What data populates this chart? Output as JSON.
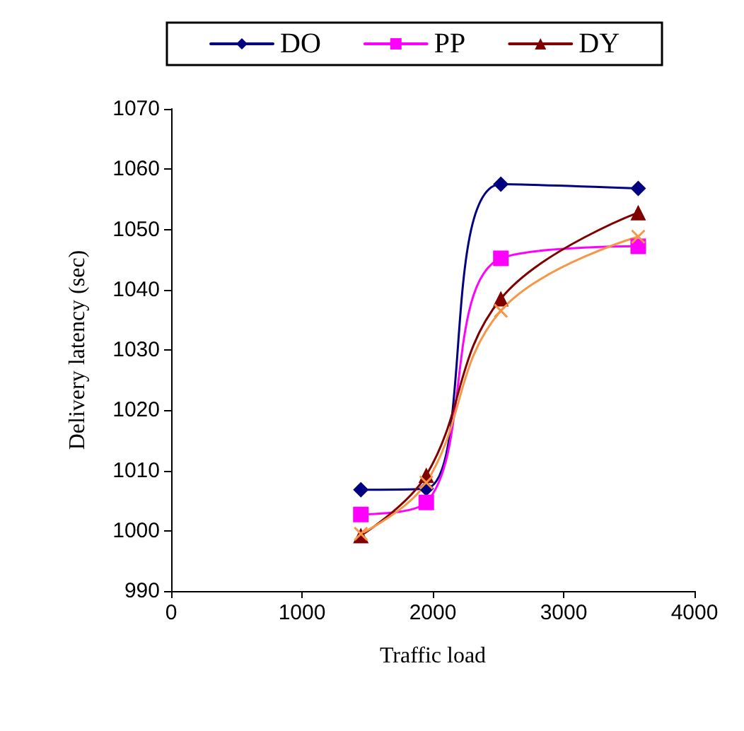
{
  "chart_data": {
    "type": "line",
    "xlabel": "Traffic load",
    "ylabel": "Delivery latency (sec)",
    "x": [
      1450,
      1950,
      2520,
      3570
    ],
    "series": [
      {
        "name": "DO",
        "color": "#000080",
        "marker": "diamond",
        "values": [
          1006.8,
          1007,
          1057.5,
          1056.8
        ]
      },
      {
        "name": "PP",
        "color": "#ff00ff",
        "marker": "square",
        "values": [
          1002.7,
          1004.7,
          1045.2,
          1047.2
        ]
      },
      {
        "name": "DY",
        "color": "#800000",
        "marker": "triangle",
        "values": [
          999.2,
          1009.2,
          1038.5,
          1052.8
        ]
      },
      {
        "color": "#f79646",
        "marker": "cross",
        "values": [
          999.5,
          1008,
          1036.5,
          1048.8
        ]
      }
    ],
    "xlim": [
      0,
      4000
    ],
    "xticks": [
      0,
      1000,
      2000,
      3000,
      4000
    ],
    "ylim": [
      990,
      1070
    ],
    "yticks": [
      990,
      1000,
      1010,
      1020,
      1030,
      1040,
      1050,
      1060,
      1070
    ],
    "grid": false,
    "legend": "top",
    "line_style": "solid"
  }
}
